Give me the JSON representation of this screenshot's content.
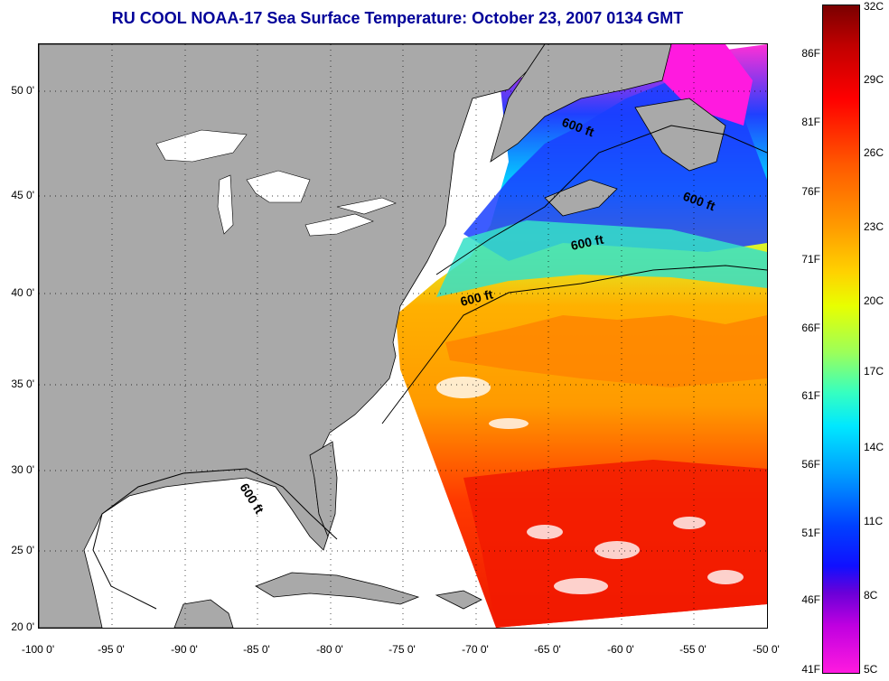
{
  "title": "RU COOL  NOAA-17  Sea Surface Temperature:  October 23, 2007 0134 GMT",
  "lat_labels": [
    "50 0'",
    "45 0'",
    "40 0'",
    "35 0'",
    "30 0'",
    "25 0'",
    "20 0'"
  ],
  "lon_labels": [
    "-100 0'",
    "-95 0'",
    "-90 0'",
    "-85 0'",
    "-80 0'",
    "-75 0'",
    "-70 0'",
    "-65 0'",
    "-60 0'",
    "-55 0'",
    "-50 0'"
  ],
  "colorbar": {
    "fahrenheit": [
      "86F",
      "81F",
      "76F",
      "71F",
      "66F",
      "61F",
      "56F",
      "51F",
      "46F",
      "41F"
    ],
    "celsius": [
      "32C",
      "29C",
      "26C",
      "23C",
      "20C",
      "17C",
      "14C",
      "11C",
      "8C",
      "5C"
    ]
  },
  "contour_label": "600 ft",
  "colors": {
    "land": "#a9a9a9",
    "title": "#000099",
    "no_data": "#ffffff"
  }
}
